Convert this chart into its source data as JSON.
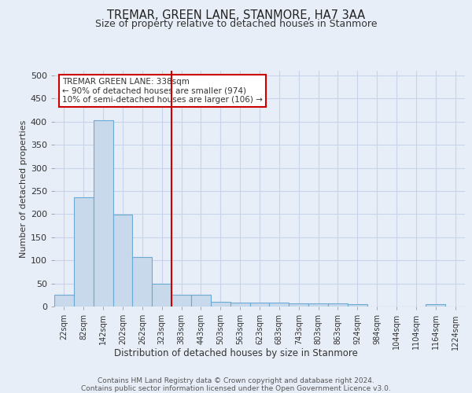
{
  "title": "TREMAR, GREEN LANE, STANMORE, HA7 3AA",
  "subtitle": "Size of property relative to detached houses in Stanmore",
  "xlabel": "Distribution of detached houses by size in Stanmore",
  "ylabel": "Number of detached properties",
  "categories": [
    "22sqm",
    "82sqm",
    "142sqm",
    "202sqm",
    "262sqm",
    "323sqm",
    "383sqm",
    "443sqm",
    "503sqm",
    "563sqm",
    "623sqm",
    "683sqm",
    "743sqm",
    "803sqm",
    "863sqm",
    "924sqm",
    "984sqm",
    "1044sqm",
    "1104sqm",
    "1164sqm",
    "1224sqm"
  ],
  "values": [
    25,
    237,
    403,
    199,
    107,
    49,
    25,
    25,
    11,
    8,
    8,
    8,
    7,
    6,
    6,
    5,
    0,
    0,
    0,
    5,
    0
  ],
  "bar_color": "#c8d9ec",
  "bar_edge_color": "#6aaad4",
  "grid_color": "#c8d4e8",
  "bg_color": "#e8eef8",
  "vline_x": 5.5,
  "vline_color": "#cc0000",
  "annotation_text": "TREMAR GREEN LANE: 338sqm\n← 90% of detached houses are smaller (974)\n10% of semi-detached houses are larger (106) →",
  "annotation_box_color": "#ffffff",
  "annotation_box_edge": "#cc0000",
  "footer_line1": "Contains HM Land Registry data © Crown copyright and database right 2024.",
  "footer_line2": "Contains public sector information licensed under the Open Government Licence v3.0.",
  "ylim": [
    0,
    510
  ],
  "yticks": [
    0,
    50,
    100,
    150,
    200,
    250,
    300,
    350,
    400,
    450,
    500
  ]
}
